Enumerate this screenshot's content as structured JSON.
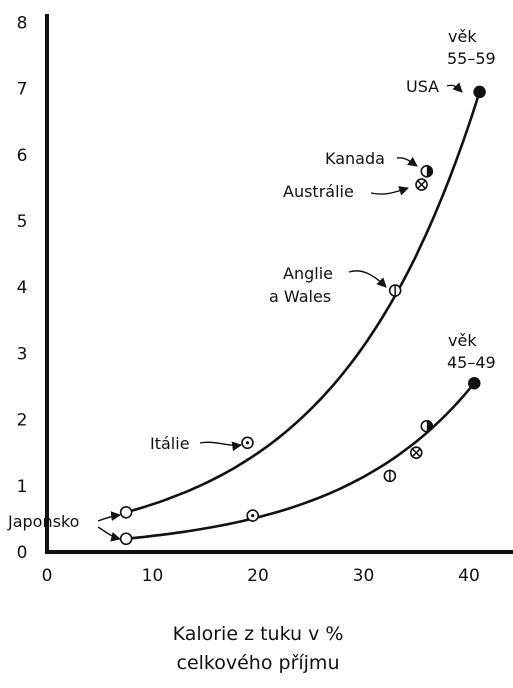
{
  "chart_data": {
    "type": "scatter",
    "title": "",
    "xlabel": [
      "Kalorie z tuku v %",
      "celkového příjmu"
    ],
    "ylabel": "",
    "xlim": [
      0,
      45
    ],
    "ylim": [
      0,
      8
    ],
    "x_ticks": [
      "0",
      "10",
      "20",
      "30",
      "40"
    ],
    "y_ticks": [
      "0",
      "1",
      "2",
      "3",
      "4",
      "5",
      "6",
      "7",
      "8"
    ],
    "grid": false,
    "series": [
      {
        "name": "věk 55–59",
        "label_lines": [
          "věk",
          "55–59"
        ],
        "points": [
          {
            "country": "Japonsko",
            "x": 7.5,
            "y": 0.6,
            "marker": "open"
          },
          {
            "country": "Itálie",
            "x": 19.0,
            "y": 1.65,
            "marker": "dot"
          },
          {
            "country": "Anglie a Wales",
            "x": 33.0,
            "y": 3.95,
            "marker": "vbar"
          },
          {
            "country": "Austrálie",
            "x": 35.5,
            "y": 5.55,
            "marker": "cross"
          },
          {
            "country": "Kanada",
            "x": 36.0,
            "y": 5.75,
            "marker": "half"
          },
          {
            "country": "USA",
            "x": 41.0,
            "y": 6.95,
            "marker": "filled"
          }
        ]
      },
      {
        "name": "věk 45–49",
        "label_lines": [
          "věk",
          "45–49"
        ],
        "points": [
          {
            "country": "Japonsko",
            "x": 7.5,
            "y": 0.2,
            "marker": "open"
          },
          {
            "country": "Itálie",
            "x": 19.5,
            "y": 0.55,
            "marker": "dot"
          },
          {
            "country": "Anglie a Wales",
            "x": 32.5,
            "y": 1.15,
            "marker": "vbar"
          },
          {
            "country": "Austrálie",
            "x": 35.0,
            "y": 1.5,
            "marker": "cross"
          },
          {
            "country": "Kanada",
            "x": 36.0,
            "y": 1.9,
            "marker": "half"
          },
          {
            "country": "USA",
            "x": 40.5,
            "y": 2.55,
            "marker": "filled"
          }
        ]
      }
    ],
    "annotations": {
      "usa": "USA",
      "kanada": "Kanada",
      "australie": "Austrálie",
      "anglie": [
        "Anglie",
        "a Wales"
      ],
      "italie": "Itálie",
      "japonsko": "Japonsko"
    }
  }
}
